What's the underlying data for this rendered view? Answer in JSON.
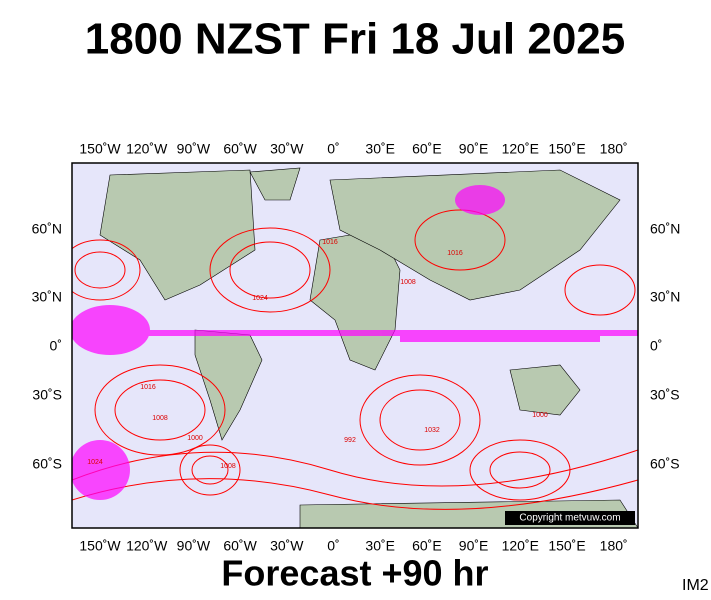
{
  "header": {
    "title": "1800 NZST Fri 18 Jul 2025"
  },
  "map": {
    "lon_labels": [
      "150˚W",
      "120˚W",
      "90˚W",
      "60˚W",
      "30˚W",
      "0˚",
      "30˚E",
      "60˚E",
      "90˚E",
      "120˚E",
      "150˚E",
      "180˚"
    ],
    "lat_labels": [
      "60˚N",
      "30˚N",
      "0˚",
      "30˚S",
      "60˚S"
    ],
    "contour_labels": [
      "1016",
      "1024",
      "1008",
      "1016",
      "1000",
      "1008",
      "1032",
      "992",
      "1016",
      "1008",
      "1024",
      "1000"
    ],
    "copyright": "Copyright metvuw.com"
  },
  "footer": {
    "forecast": "Forecast +90 hr",
    "image_id": "IM2"
  }
}
